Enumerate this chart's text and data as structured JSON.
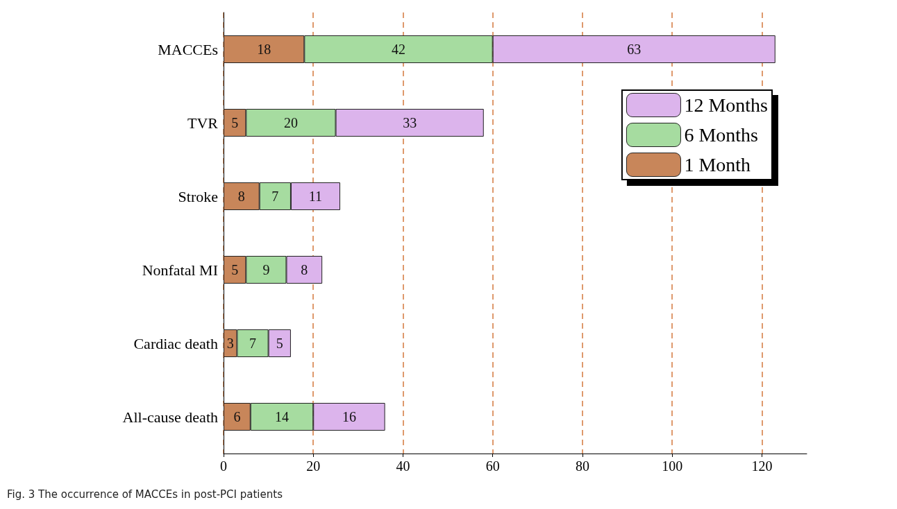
{
  "chart_data": {
    "type": "bar",
    "orientation": "horizontal",
    "stacked": true,
    "categories": [
      "MACCEs",
      "TVR",
      "Stroke",
      "Nonfatal MI",
      "Cardiac death",
      "All-cause death"
    ],
    "series": [
      {
        "name": "1 Month",
        "color": "#c8865a",
        "values": [
          18,
          5,
          8,
          5,
          3,
          6
        ]
      },
      {
        "name": "6 Months",
        "color": "#a6dca0",
        "values": [
          42,
          20,
          7,
          9,
          7,
          14
        ]
      },
      {
        "name": "12 Months",
        "color": "#dcb4ec",
        "values": [
          63,
          33,
          11,
          8,
          5,
          16
        ]
      }
    ],
    "xlim": [
      0,
      130
    ],
    "xticks": [
      0,
      20,
      40,
      60,
      80,
      100,
      120
    ],
    "grid": "x",
    "legend": "top right",
    "data_labels": true,
    "annotations": [
      "Fig. 3 The occurrence of MACCEs in post-PCI patients"
    ]
  }
}
